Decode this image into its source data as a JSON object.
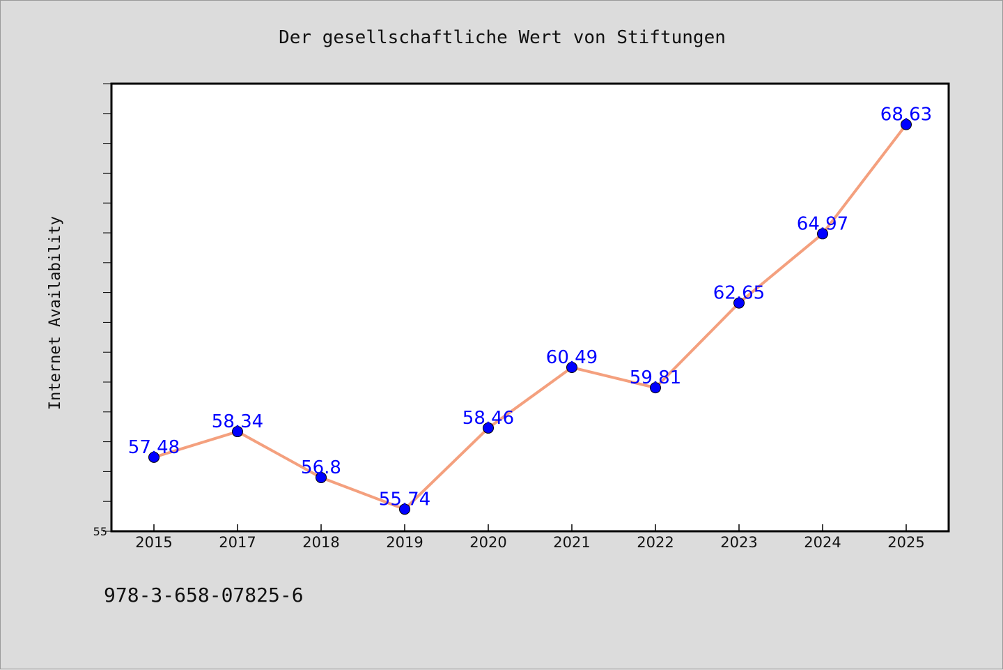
{
  "chart_data": {
    "type": "line",
    "title": "Der gesellschaftliche Wert von Stiftungen",
    "xlabel": "",
    "ylabel": "Internet Availability",
    "categories": [
      "2015",
      "2017",
      "2018",
      "2019",
      "2020",
      "2021",
      "2022",
      "2023",
      "2024",
      "2025"
    ],
    "values": [
      57.48,
      58.34,
      56.8,
      55.74,
      58.46,
      60.49,
      59.81,
      62.65,
      64.97,
      68.63
    ],
    "data_labels": [
      "57.48",
      "58.34",
      "56.8",
      "55.74",
      "58.46",
      "60.49",
      "59.81",
      "62.65",
      "64.97",
      "68.63"
    ],
    "ylim": [
      55,
      70
    ],
    "ytick_labels": [
      "55"
    ],
    "grid": false,
    "line_color": "#f4a07e",
    "marker_color": "#0000ff",
    "label_color": "#0000ff",
    "background": "#dcdcdc",
    "plot_background": "#ffffff"
  },
  "footer": {
    "isbn": "978-3-658-07825-6"
  }
}
